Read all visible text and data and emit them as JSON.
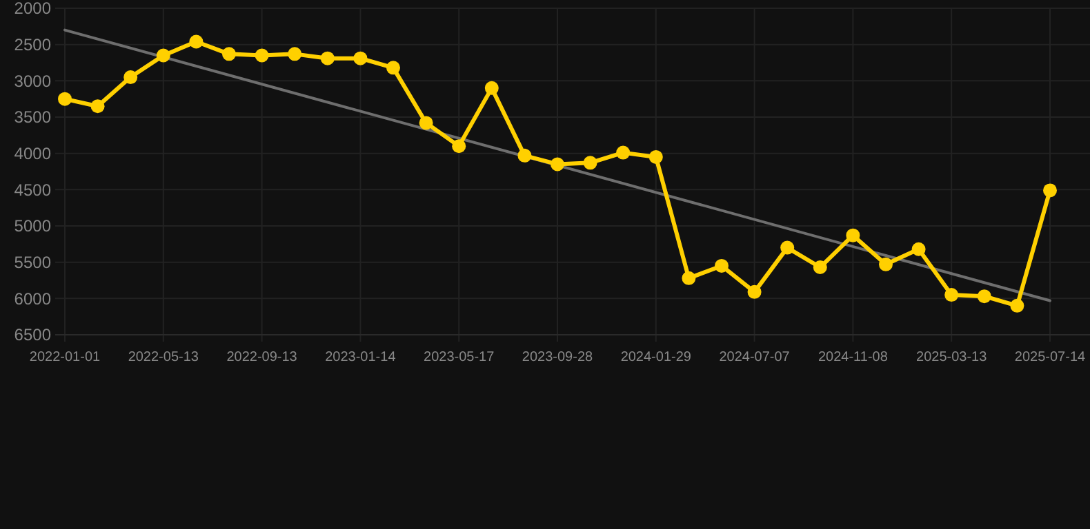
{
  "chart_data": {
    "type": "line",
    "categories": [
      "2022-01-01",
      null,
      null,
      "2022-05-13",
      null,
      null,
      "2022-09-13",
      null,
      null,
      "2023-01-14",
      null,
      null,
      "2023-05-17",
      null,
      null,
      "2023-09-28",
      null,
      null,
      "2024-01-29",
      null,
      null,
      "2024-07-07",
      null,
      null,
      "2024-11-08",
      null,
      null,
      "2025-03-13",
      null,
      null,
      "2025-07-14"
    ],
    "series": [
      {
        "color": "#ffd000",
        "marker": "circle",
        "values": [
          3250,
          3350,
          2950,
          2650,
          2460,
          2630,
          2650,
          2630,
          2690,
          2690,
          2820,
          3580,
          3900,
          3100,
          4030,
          4150,
          4130,
          3990,
          4050,
          5720,
          5550,
          5910,
          5300,
          5570,
          5130,
          5530,
          5320,
          5950,
          5970,
          6100,
          4510
        ]
      },
      {
        "type": "line",
        "color": "#6e6e6e",
        "marker": "none",
        "values": [
          2300,
          null,
          null,
          null,
          null,
          null,
          null,
          null,
          null,
          null,
          null,
          null,
          null,
          null,
          null,
          null,
          null,
          null,
          null,
          null,
          null,
          null,
          null,
          null,
          null,
          null,
          null,
          null,
          null,
          null,
          6030
        ]
      }
    ],
    "ylim": [
      6500,
      2000
    ],
    "yticks": [
      2000,
      2500,
      3000,
      3500,
      4000,
      4500,
      5000,
      5500,
      6000,
      6500
    ],
    "grid": true
  }
}
